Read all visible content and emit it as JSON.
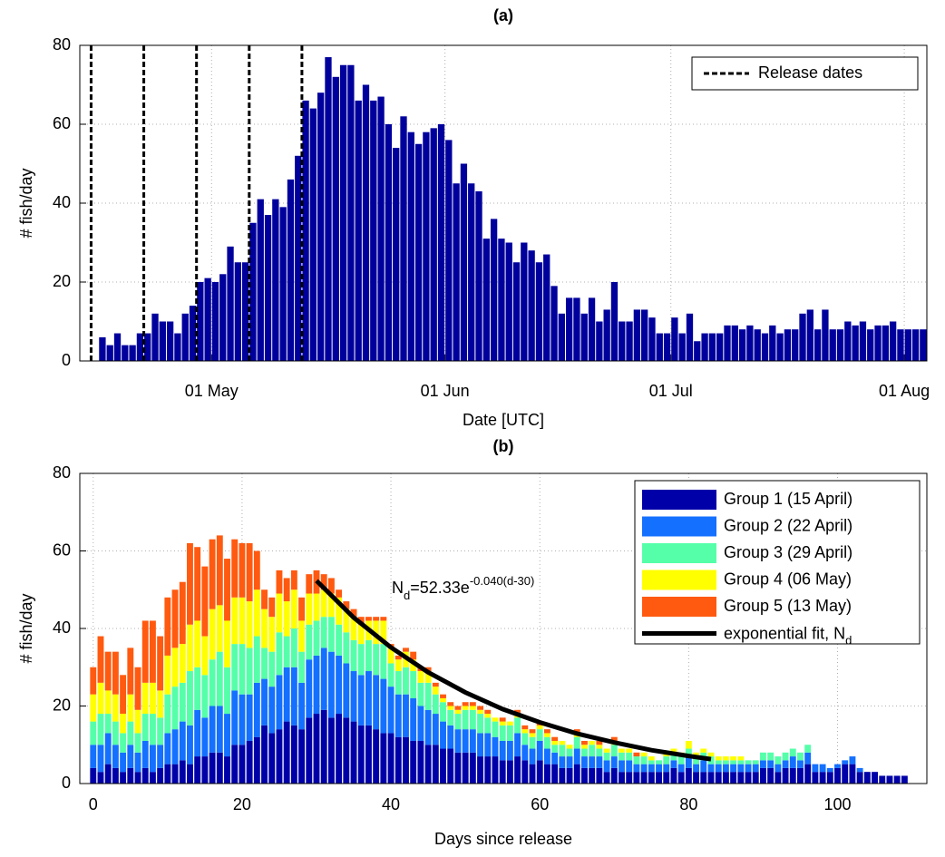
{
  "chart_data": [
    {
      "type": "bar",
      "title": "(a)",
      "x_label": "Date [UTC]",
      "y_label": "# fish/day",
      "xlim": [
        -17.5,
        95
      ],
      "ylim": [
        0,
        80
      ],
      "xticks": [
        {
          "value": 0,
          "label": "01 May"
        },
        {
          "value": 31,
          "label": "01 Jun"
        },
        {
          "value": 61,
          "label": "01 Jul"
        },
        {
          "value": 92,
          "label": "01 Aug"
        }
      ],
      "yticks": [
        0,
        20,
        40,
        60,
        80
      ],
      "grid": true,
      "color": "#00009c",
      "x": [
        -15,
        -14,
        -13,
        -12,
        -11,
        -10,
        -9,
        -8,
        -7,
        -6,
        -5,
        -4,
        -3,
        -2,
        -1,
        0,
        1,
        2,
        3,
        4,
        5,
        6,
        7,
        8,
        9,
        10,
        11,
        12,
        13,
        14,
        15,
        16,
        17,
        18,
        19,
        20,
        21,
        22,
        23,
        24,
        25,
        26,
        27,
        28,
        29,
        30,
        31,
        32,
        33,
        34,
        35,
        36,
        37,
        38,
        39,
        40,
        41,
        42,
        43,
        44,
        45,
        46,
        47,
        48,
        49,
        50,
        51,
        52,
        53,
        54,
        55,
        56,
        57,
        58,
        59,
        60,
        61,
        62,
        63,
        64,
        65,
        66,
        67,
        68,
        69,
        70,
        71,
        72,
        73,
        74,
        75,
        76,
        77,
        78,
        79,
        80,
        81,
        82,
        83,
        84,
        85,
        86,
        87,
        88,
        89,
        90,
        91,
        92,
        93,
        94
      ],
      "values": [
        6,
        4,
        7,
        4,
        4,
        7,
        7,
        12,
        10,
        10,
        7,
        12,
        14,
        20,
        21,
        20,
        22,
        29,
        25,
        25,
        35,
        41,
        37,
        41,
        39,
        46,
        52,
        66,
        64,
        68,
        77,
        72,
        75,
        75,
        66,
        70,
        66,
        67,
        60,
        54,
        62,
        58,
        55,
        58,
        59,
        60,
        56,
        45,
        50,
        45,
        43,
        31,
        36,
        31,
        30,
        25,
        30,
        28,
        25,
        27,
        19,
        12,
        16,
        16,
        12,
        16,
        10,
        13,
        20,
        10,
        10,
        13,
        13,
        11,
        7,
        7,
        11,
        7,
        12,
        5,
        7,
        7,
        7,
        9,
        9,
        8,
        9,
        8,
        7,
        9,
        7,
        8,
        8,
        12,
        13,
        8,
        13,
        8,
        8,
        10,
        9,
        10,
        8,
        9,
        9,
        10,
        8,
        8,
        8,
        8
      ],
      "release_dates": {
        "name": "Release dates",
        "color": "#000000",
        "x": [
          -16,
          -9,
          -2,
          5,
          12
        ]
      },
      "legend": "upper right"
    },
    {
      "type": "stacked_bar",
      "title": "(b)",
      "x_label": "Days since release",
      "y_label": "# fish/day",
      "xlim": [
        -1.8,
        112
      ],
      "ylim": [
        0,
        80
      ],
      "xticks": [
        0,
        20,
        40,
        60,
        80,
        100
      ],
      "yticks": [
        0,
        20,
        40,
        60,
        80
      ],
      "grid": true,
      "legend": "upper right",
      "x": [
        0,
        1,
        2,
        3,
        4,
        5,
        6,
        7,
        8,
        9,
        10,
        11,
        12,
        13,
        14,
        15,
        16,
        17,
        18,
        19,
        20,
        21,
        22,
        23,
        24,
        25,
        26,
        27,
        28,
        29,
        30,
        31,
        32,
        33,
        34,
        35,
        36,
        37,
        38,
        39,
        40,
        41,
        42,
        43,
        44,
        45,
        46,
        47,
        48,
        49,
        50,
        51,
        52,
        53,
        54,
        55,
        56,
        57,
        58,
        59,
        60,
        61,
        62,
        63,
        64,
        65,
        66,
        67,
        68,
        69,
        70,
        71,
        72,
        73,
        74,
        75,
        76,
        77,
        78,
        79,
        80,
        81,
        82,
        83,
        84,
        85,
        86,
        87,
        88,
        89,
        90,
        91,
        92,
        93,
        94,
        95,
        96,
        97,
        98,
        99,
        100,
        101,
        102,
        103,
        104,
        105,
        106,
        107,
        108,
        109
      ],
      "series": [
        {
          "name": "Group 1 (15 April)",
          "color": "#0000a8",
          "values": [
            4,
            3,
            5,
            4,
            3,
            4,
            3,
            4,
            3,
            4,
            5,
            5,
            6,
            5,
            7,
            7,
            8,
            8,
            7,
            10,
            10,
            11,
            12,
            15,
            13,
            14,
            16,
            15,
            14,
            17,
            18,
            19,
            17,
            18,
            17,
            16,
            15,
            15,
            14,
            13,
            13,
            12,
            12,
            11,
            11,
            10,
            10,
            9,
            9,
            8,
            8,
            8,
            7,
            7,
            7,
            6,
            6,
            7,
            6,
            5,
            6,
            5,
            5,
            4,
            4,
            5,
            4,
            4,
            4,
            3,
            4,
            3,
            3,
            3,
            3,
            3,
            3,
            3,
            4,
            3,
            4,
            3,
            3,
            3,
            3,
            3,
            3,
            3,
            3,
            3,
            4,
            4,
            3,
            4,
            4,
            4,
            5,
            3,
            3,
            3,
            4,
            5,
            5,
            3,
            3,
            3,
            2,
            2,
            2,
            2
          ]
        },
        {
          "name": "Group 2 (22 April)",
          "color": "#1470ff",
          "values": [
            6,
            7,
            8,
            6,
            5,
            6,
            5,
            7,
            7,
            6,
            8,
            9,
            10,
            10,
            12,
            10,
            12,
            12,
            11,
            14,
            13,
            12,
            14,
            12,
            12,
            14,
            14,
            15,
            12,
            15,
            15,
            16,
            17,
            15,
            14,
            13,
            13,
            14,
            14,
            14,
            12,
            11,
            11,
            11,
            9,
            9,
            8,
            7,
            6,
            6,
            6,
            6,
            6,
            6,
            5,
            5,
            5,
            6,
            4,
            4,
            5,
            4,
            3,
            3,
            3,
            4,
            3,
            3,
            3,
            3,
            3,
            3,
            3,
            2,
            2,
            2,
            2,
            2,
            2,
            2,
            3,
            2,
            3,
            2,
            2,
            2,
            2,
            2,
            2,
            2,
            2,
            2,
            2,
            2,
            3,
            2,
            3,
            2,
            2,
            1,
            1,
            1,
            2,
            1,
            0,
            0,
            0,
            0,
            0,
            0
          ]
        },
        {
          "name": "Group 3 (29 April)",
          "color": "#55ffaa",
          "values": [
            6,
            8,
            5,
            6,
            5,
            6,
            5,
            7,
            8,
            7,
            10,
            11,
            10,
            14,
            11,
            11,
            12,
            14,
            12,
            12,
            13,
            12,
            12,
            8,
            9,
            11,
            8,
            10,
            8,
            9,
            9,
            8,
            9,
            8,
            8,
            8,
            8,
            8,
            8,
            9,
            6,
            6,
            7,
            7,
            6,
            7,
            5,
            5,
            4,
            4,
            5,
            5,
            5,
            4,
            4,
            4,
            4,
            4,
            3,
            3,
            3,
            3,
            2,
            3,
            2,
            3,
            2,
            3,
            2,
            2,
            3,
            2,
            2,
            2,
            2,
            1,
            1,
            2,
            2,
            2,
            2,
            2,
            2,
            2,
            1,
            1,
            1,
            1,
            1,
            1,
            2,
            2,
            2,
            2,
            2,
            2,
            2,
            0,
            0,
            0,
            0,
            0,
            0,
            0,
            0,
            0,
            0,
            0,
            0,
            0
          ]
        },
        {
          "name": "Group 4 (06 May)",
          "color": "#ffff00",
          "values": [
            7,
            8,
            6,
            7,
            5,
            7,
            6,
            8,
            8,
            7,
            10,
            10,
            10,
            12,
            12,
            10,
            13,
            12,
            12,
            12,
            12,
            12,
            12,
            10,
            9,
            10,
            9,
            10,
            8,
            8,
            7,
            7,
            6,
            7,
            6,
            6,
            5,
            5,
            6,
            6,
            4,
            3,
            4,
            3,
            3,
            3,
            2,
            1,
            1,
            1,
            1,
            1,
            1,
            1,
            1,
            1,
            1,
            1,
            1,
            1,
            1,
            1,
            1,
            1,
            1,
            1,
            1,
            1,
            1,
            1,
            1,
            1,
            1,
            0,
            1,
            1,
            0,
            1,
            1,
            1,
            2,
            1,
            1,
            1,
            1,
            1,
            1,
            1,
            0,
            0,
            0,
            0,
            0,
            0,
            0,
            0,
            0,
            0,
            0,
            0,
            0,
            0,
            0,
            0,
            0,
            0,
            0,
            0,
            0,
            0
          ]
        },
        {
          "name": "Group 5 (13 May)",
          "color": "#ff5a10",
          "values": [
            7,
            12,
            10,
            11,
            10,
            12,
            11,
            16,
            16,
            14,
            15,
            15,
            16,
            21,
            19,
            18,
            18,
            18,
            16,
            15,
            14,
            15,
            10,
            5,
            5,
            6,
            6,
            5,
            6,
            5,
            6,
            4,
            4,
            2,
            2,
            2,
            2,
            1,
            1,
            1,
            1,
            1,
            1,
            2,
            1,
            1,
            1,
            1,
            1,
            1,
            1,
            1,
            1,
            1,
            0,
            1,
            0,
            1,
            1,
            1,
            1,
            1,
            1,
            0,
            0,
            1,
            1,
            0,
            1,
            0,
            1,
            0,
            0,
            1,
            0,
            0,
            0,
            0,
            0,
            0,
            0,
            0,
            0,
            0,
            0,
            0,
            0,
            0,
            0,
            0,
            0,
            0,
            0,
            0,
            0,
            0,
            0,
            0,
            0,
            0,
            0,
            0,
            0,
            0,
            0,
            0,
            0,
            0,
            0,
            0
          ]
        }
      ],
      "fit": {
        "name": "exponential fit, N",
        "name_sub": "d",
        "color": "#000000",
        "x": [
          30,
          35,
          40,
          45,
          50,
          55,
          60,
          65,
          70,
          75,
          80,
          83
        ],
        "values": [
          52.3,
          42.8,
          35.1,
          28.7,
          23.5,
          19.2,
          15.8,
          12.9,
          10.6,
          8.6,
          7.1,
          6.3
        ]
      },
      "annotation": [
        "N",
        "d",
        "=52.33e",
        "-0.040(d-30)"
      ]
    }
  ]
}
